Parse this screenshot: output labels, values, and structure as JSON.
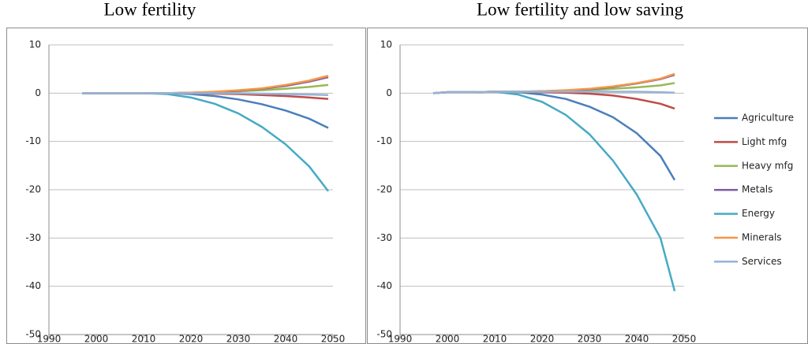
{
  "chart_data": [
    {
      "type": "line",
      "title": "Low fertility",
      "x": [
        1997,
        2000,
        2005,
        2010,
        2015,
        2020,
        2025,
        2030,
        2035,
        2040,
        2045,
        2049
      ],
      "xlim": [
        1990,
        2050
      ],
      "xticks": [
        1990,
        2000,
        2010,
        2020,
        2030,
        2040,
        2050
      ],
      "ylim": [
        -50,
        10
      ],
      "yticks": [
        10,
        0,
        -10,
        -20,
        -30,
        -40,
        -50
      ],
      "grid": true,
      "series": [
        {
          "color": "#4a7ebb",
          "values": [
            0,
            0,
            0,
            0,
            0,
            -0.2,
            -0.6,
            -1.3,
            -2.3,
            -3.6,
            -5.3,
            -7.2
          ]
        },
        {
          "color": "#be4b48",
          "values": [
            0,
            0,
            0,
            0,
            0,
            0,
            -0.1,
            -0.2,
            -0.4,
            -0.6,
            -0.9,
            -1.2
          ]
        },
        {
          "color": "#98b954",
          "values": [
            0,
            0,
            0,
            0,
            0,
            0.1,
            0.2,
            0.4,
            0.6,
            0.9,
            1.3,
            1.7
          ]
        },
        {
          "color": "#7d60a0",
          "values": [
            0,
            0,
            0,
            0,
            0,
            0.1,
            0.2,
            0.5,
            0.9,
            1.5,
            2.4,
            3.3
          ]
        },
        {
          "color": "#46aac5",
          "values": [
            0,
            0,
            0,
            0,
            -0.2,
            -0.9,
            -2.2,
            -4.2,
            -7,
            -10.6,
            -15.2,
            -20.3
          ]
        },
        {
          "color": "#f79646",
          "values": [
            0,
            0,
            0,
            0,
            0,
            0.1,
            0.3,
            0.6,
            1.0,
            1.7,
            2.6,
            3.6
          ]
        },
        {
          "color": "#95b3d7",
          "values": [
            0,
            0,
            0,
            0,
            0,
            0,
            0,
            0,
            -0.1,
            -0.2,
            -0.3,
            -0.4
          ]
        }
      ]
    },
    {
      "type": "line",
      "title": "Low fertility and low saving",
      "x": [
        1997,
        2000,
        2005,
        2010,
        2015,
        2020,
        2025,
        2030,
        2035,
        2040,
        2045,
        2048
      ],
      "xlim": [
        1990,
        2050
      ],
      "xticks": [
        1990,
        2000,
        2010,
        2020,
        2030,
        2040,
        2050
      ],
      "ylim": [
        -50,
        10
      ],
      "yticks": [
        10,
        0,
        -10,
        -20,
        -30,
        -40,
        -50
      ],
      "grid": true,
      "legend": "right",
      "series": [
        {
          "name": "Agriculture",
          "color": "#4a7ebb",
          "values": [
            0,
            0.2,
            0.2,
            0.3,
            0.2,
            -0.3,
            -1.2,
            -2.8,
            -5,
            -8.3,
            -13,
            -18
          ]
        },
        {
          "name": "Light mfg",
          "color": "#be4b48",
          "values": [
            0,
            0.2,
            0.2,
            0.3,
            0.3,
            0.2,
            0.1,
            -0.1,
            -0.5,
            -1.2,
            -2.2,
            -3.2
          ]
        },
        {
          "name": "Heavy mfg",
          "color": "#98b954",
          "values": [
            0,
            0.2,
            0.2,
            0.3,
            0.3,
            0.3,
            0.4,
            0.6,
            0.9,
            1.2,
            1.6,
            2.1
          ]
        },
        {
          "name": "Metals",
          "color": "#7d60a0",
          "values": [
            0,
            0.2,
            0.2,
            0.3,
            0.3,
            0.4,
            0.5,
            0.8,
            1.3,
            2.0,
            2.9,
            3.8
          ]
        },
        {
          "name": "Energy",
          "color": "#46aac5",
          "values": [
            0,
            0.2,
            0.2,
            0.3,
            -0.3,
            -1.8,
            -4.5,
            -8.5,
            -14,
            -21,
            -30,
            -41
          ]
        },
        {
          "name": "Minerals",
          "color": "#f79646",
          "values": [
            0,
            0.2,
            0.2,
            0.3,
            0.3,
            0.4,
            0.6,
            0.9,
            1.4,
            2.1,
            3.0,
            4.0
          ]
        },
        {
          "name": "Services",
          "color": "#95b3d7",
          "values": [
            0,
            0.2,
            0.2,
            0.3,
            0.3,
            0.3,
            0.3,
            0.3,
            0.3,
            0.3,
            0.2,
            0.1
          ]
        }
      ]
    }
  ]
}
